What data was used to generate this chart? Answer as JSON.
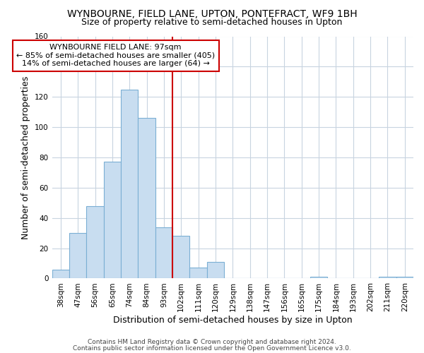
{
  "title": "WYNBOURNE, FIELD LANE, UPTON, PONTEFRACT, WF9 1BH",
  "subtitle": "Size of property relative to semi-detached houses in Upton",
  "xlabel": "Distribution of semi-detached houses by size in Upton",
  "ylabel": "Number of semi-detached properties",
  "categories": [
    "38sqm",
    "47sqm",
    "56sqm",
    "65sqm",
    "74sqm",
    "84sqm",
    "93sqm",
    "102sqm",
    "111sqm",
    "120sqm",
    "129sqm",
    "138sqm",
    "147sqm",
    "156sqm",
    "165sqm",
    "175sqm",
    "184sqm",
    "193sqm",
    "202sqm",
    "211sqm",
    "220sqm"
  ],
  "values": [
    6,
    30,
    48,
    77,
    125,
    106,
    34,
    28,
    7,
    11,
    0,
    0,
    0,
    0,
    0,
    1,
    0,
    0,
    0,
    1,
    1
  ],
  "bar_color": "#c8ddf0",
  "bar_edge_color": "#7bafd4",
  "vline_x_index": 6.5,
  "vline_color": "#cc0000",
  "annotation_line1": "WYNBOURNE FIELD LANE: 97sqm",
  "annotation_line2": "← 85% of semi-detached houses are smaller (405)",
  "annotation_line3": "14% of semi-detached houses are larger (64) →",
  "annotation_box_edge_color": "#cc0000",
  "ylim": [
    0,
    160
  ],
  "yticks": [
    0,
    20,
    40,
    60,
    80,
    100,
    120,
    140,
    160
  ],
  "footer_line1": "Contains HM Land Registry data © Crown copyright and database right 2024.",
  "footer_line2": "Contains public sector information licensed under the Open Government Licence v3.0.",
  "bg_color": "#ffffff",
  "grid_color": "#c8d4e0",
  "title_fontsize": 10,
  "subtitle_fontsize": 9,
  "axis_label_fontsize": 9,
  "tick_fontsize": 7.5,
  "annotation_fontsize": 8,
  "footer_fontsize": 6.5
}
